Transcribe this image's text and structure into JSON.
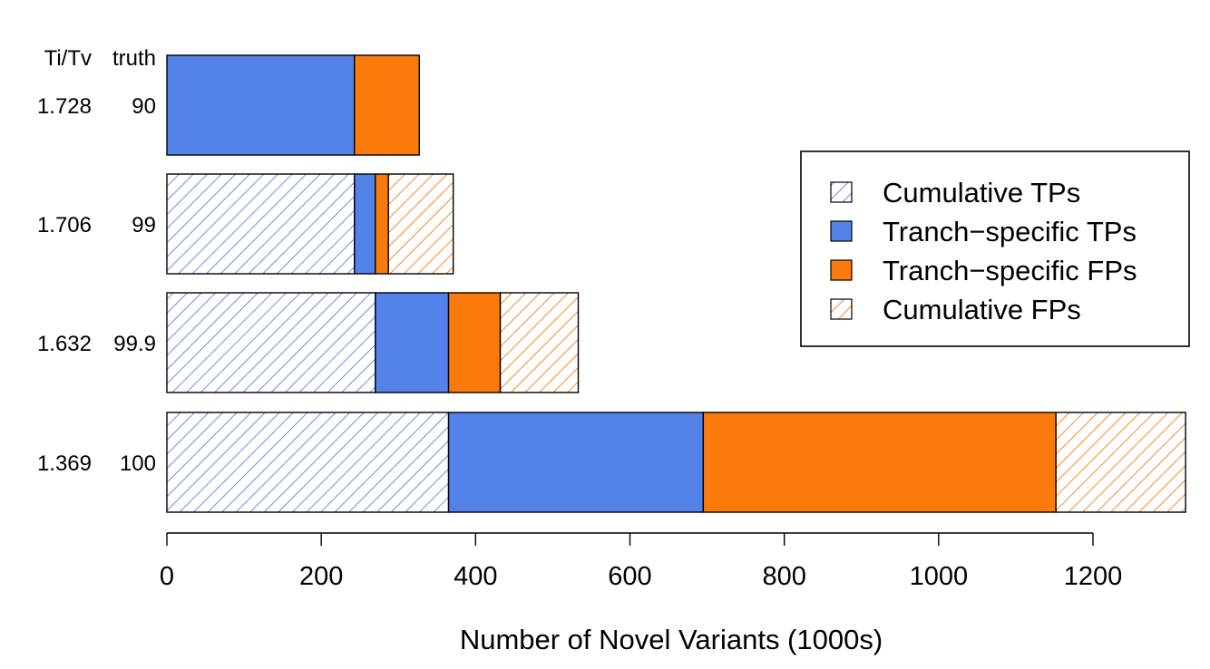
{
  "chart_data": {
    "type": "bar",
    "orientation": "horizontal",
    "stacked": true,
    "xlabel": "Number of Novel Variants (1000s)",
    "xlim": [
      0,
      1320
    ],
    "xticks": [
      0,
      200,
      400,
      600,
      800,
      1000,
      1200
    ],
    "row_header": {
      "titv": "Ti/Tv",
      "truth": "truth"
    },
    "tranches": [
      {
        "titv": "1.728",
        "truth": "90",
        "cumulative_tps": 0,
        "tranche_tps": 243,
        "tranche_fps": 84,
        "cumulative_fps": 0
      },
      {
        "titv": "1.706",
        "truth": "99",
        "cumulative_tps": 243,
        "tranche_tps": 27,
        "tranche_fps": 17,
        "cumulative_fps": 84
      },
      {
        "titv": "1.632",
        "truth": "99.9",
        "cumulative_tps": 270,
        "tranche_tps": 95,
        "tranche_fps": 67,
        "cumulative_fps": 101
      },
      {
        "titv": "1.369",
        "truth": "100",
        "cumulative_tps": 365,
        "tranche_tps": 330,
        "tranche_fps": 457,
        "cumulative_fps": 168
      }
    ],
    "series": [
      {
        "name": "Cumulative TPs",
        "key": "cumulative_tps",
        "color": "#5382e8",
        "pattern": "hatched"
      },
      {
        "name": "Tranch−specific TPs",
        "key": "tranche_tps",
        "color": "#5382e8",
        "pattern": "solid"
      },
      {
        "name": "Tranch−specific FPs",
        "key": "tranche_fps",
        "color": "#fb7a0c",
        "pattern": "solid"
      },
      {
        "name": "Cumulative FPs",
        "key": "cumulative_fps",
        "color": "#fb7a0c",
        "pattern": "hatched"
      }
    ],
    "legend_position": "right",
    "grid": false
  }
}
